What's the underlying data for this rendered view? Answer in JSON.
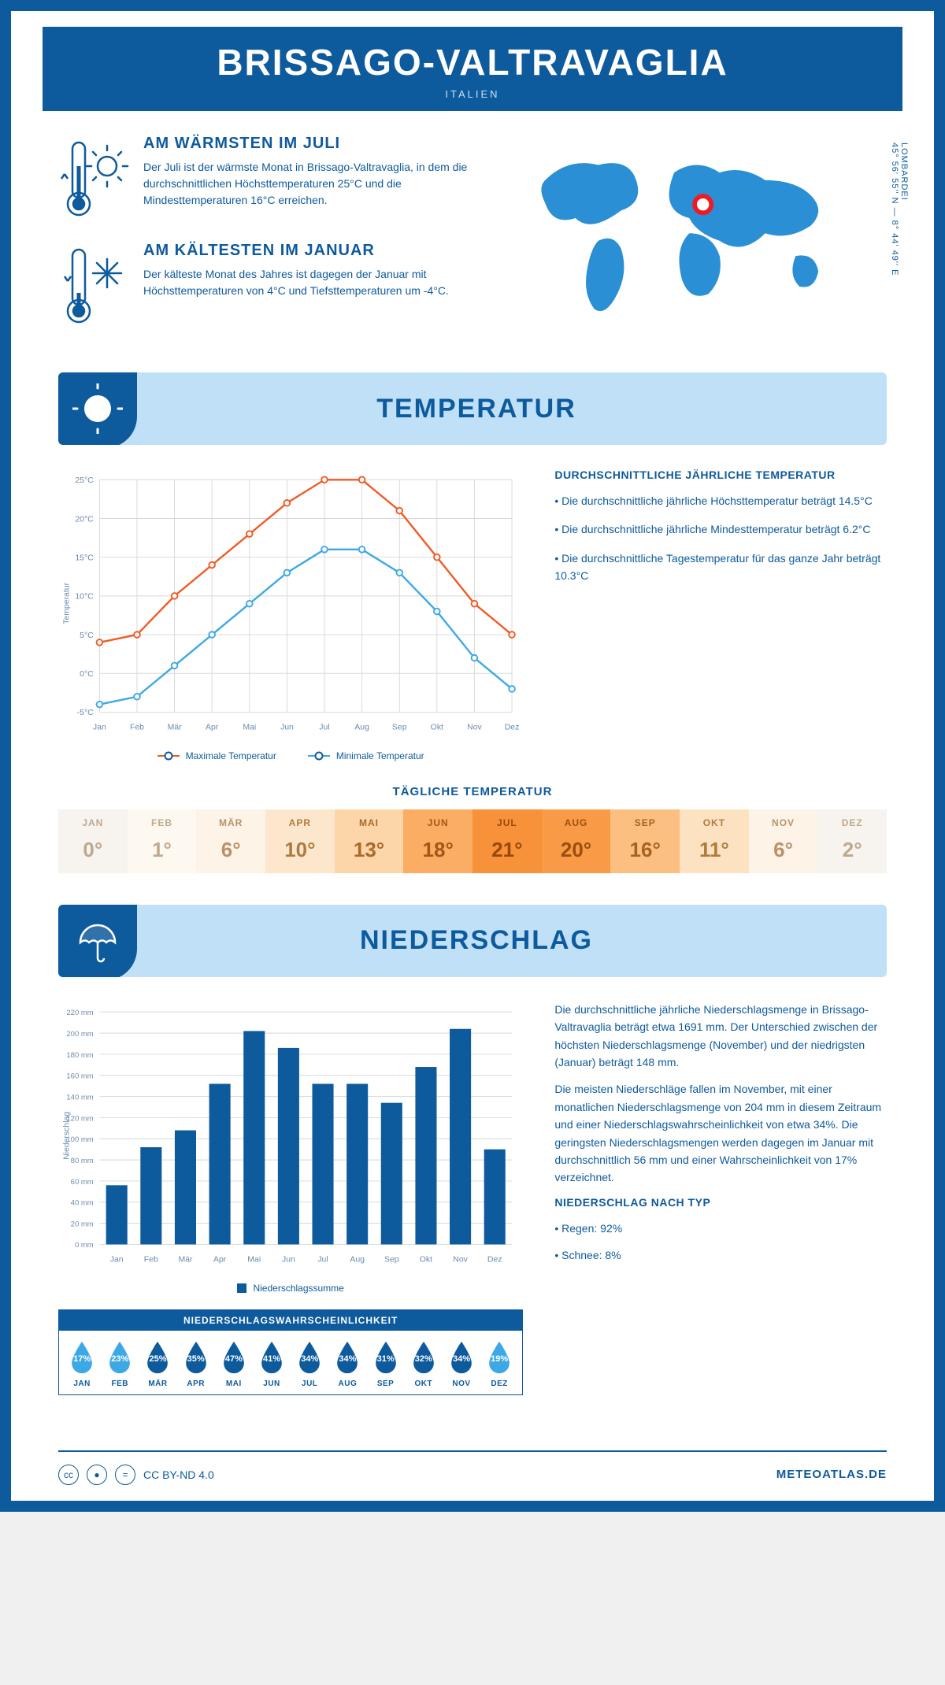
{
  "header": {
    "title": "BRISSAGO-VALTRAVAGLIA",
    "subtitle": "ITALIEN"
  },
  "coords": {
    "lat": "45° 56' 55'' N",
    "lon": "8° 44' 49'' E",
    "region": "LOMBARDEI"
  },
  "facts": {
    "warm": {
      "title": "AM WÄRMSTEN IM JULI",
      "text": "Der Juli ist der wärmste Monat in Brissago-Valtravaglia, in dem die durchschnittlichen Höchsttemperaturen 25°C und die Mindesttemperaturen 16°C erreichen."
    },
    "cold": {
      "title": "AM KÄLTESTEN IM JANUAR",
      "text": "Der kälteste Monat des Jahres ist dagegen der Januar mit Höchsttemperaturen von 4°C und Tiefsttemperaturen um -4°C."
    }
  },
  "colors": {
    "primary": "#0d5a9d",
    "banner": "#bfe0f7",
    "accent_hot": "#f15a24",
    "accent_cold": "#3da8e6",
    "map_marker": "#ed1c24",
    "grid": "#d8d8d8"
  },
  "temp_section": {
    "title": "TEMPERATUR",
    "chart": {
      "type": "line",
      "months": [
        "Jan",
        "Feb",
        "Mär",
        "Apr",
        "Mai",
        "Jun",
        "Jul",
        "Aug",
        "Sep",
        "Okt",
        "Nov",
        "Dez"
      ],
      "max": [
        4,
        5,
        10,
        14,
        18,
        22,
        25,
        25,
        21,
        15,
        9,
        5
      ],
      "min": [
        -4,
        -3,
        1,
        5,
        9,
        13,
        16,
        16,
        13,
        8,
        2,
        -2
      ],
      "ylabel": "Temperatur",
      "ylim": [
        -5,
        25
      ],
      "ytick_step": 5,
      "max_color": "#f15a24",
      "min_color": "#3da8e6",
      "legend_max": "Maximale Temperatur",
      "legend_min": "Minimale Temperatur"
    },
    "side_title": "DURCHSCHNITTLICHE JÄHRLICHE TEMPERATUR",
    "bullets": [
      "• Die durchschnittliche jährliche Höchsttemperatur beträgt 14.5°C",
      "• Die durchschnittliche jährliche Mindesttemperatur beträgt 6.2°C",
      "• Die durchschnittliche Tagestemperatur für das ganze Jahr beträgt 10.3°C"
    ],
    "daily_title": "TÄGLICHE TEMPERATUR",
    "daily": {
      "months": [
        "JAN",
        "FEB",
        "MÄR",
        "APR",
        "MAI",
        "JUN",
        "JUL",
        "AUG",
        "SEP",
        "OKT",
        "NOV",
        "DEZ"
      ],
      "values": [
        "0°",
        "1°",
        "6°",
        "10°",
        "13°",
        "18°",
        "21°",
        "20°",
        "16°",
        "11°",
        "6°",
        "2°"
      ],
      "bg_colors": [
        "#f7f3ee",
        "#fdf8f0",
        "#fdf3e6",
        "#fde7cc",
        "#fcd5a9",
        "#faad63",
        "#f7923b",
        "#f89a46",
        "#fbc081",
        "#fde2c1",
        "#fdf3e6",
        "#f7f3ee"
      ],
      "text_colors": [
        "#bda98e",
        "#bda98e",
        "#b8926a",
        "#b07a3f",
        "#a96a2a",
        "#a15718",
        "#98490a",
        "#9b4e0f",
        "#a66221",
        "#b07a3f",
        "#b8926a",
        "#bda98e"
      ]
    }
  },
  "precip_section": {
    "title": "NIEDERSCHLAG",
    "chart": {
      "type": "bar",
      "months": [
        "Jan",
        "Feb",
        "Mär",
        "Apr",
        "Mai",
        "Jun",
        "Jul",
        "Aug",
        "Sep",
        "Okt",
        "Nov",
        "Dez"
      ],
      "values": [
        56,
        92,
        108,
        152,
        202,
        186,
        152,
        152,
        134,
        168,
        204,
        90
      ],
      "ylabel": "Niederschlag",
      "ylim": [
        0,
        220
      ],
      "ytick_step": 20,
      "bar_color": "#0d5a9d",
      "legend": "Niederschlagssumme"
    },
    "side_p1": "Die durchschnittliche jährliche Niederschlagsmenge in Brissago-Valtravaglia beträgt etwa 1691 mm. Der Unterschied zwischen der höchsten Niederschlagsmenge (November) und der niedrigsten (Januar) beträgt 148 mm.",
    "side_p2": "Die meisten Niederschläge fallen im November, mit einer monatlichen Niederschlagsmenge von 204 mm in diesem Zeitraum und einer Niederschlagswahrscheinlichkeit von etwa 34%. Die geringsten Niederschlagsmengen werden dagegen im Januar mit durchschnittlich 56 mm und einer Wahrscheinlichkeit von 17% verzeichnet.",
    "type_title": "NIEDERSCHLAG NACH TYP",
    "type_b1": "• Regen: 92%",
    "type_b2": "• Schnee: 8%",
    "prob_title": "NIEDERSCHLAGSWAHRSCHEINLICHKEIT",
    "prob": {
      "months": [
        "JAN",
        "FEB",
        "MÄR",
        "APR",
        "MAI",
        "JUN",
        "JUL",
        "AUG",
        "SEP",
        "OKT",
        "NOV",
        "DEZ"
      ],
      "pct": [
        "17%",
        "23%",
        "25%",
        "35%",
        "47%",
        "41%",
        "34%",
        "34%",
        "31%",
        "32%",
        "34%",
        "19%"
      ],
      "fill": [
        "#3da8e6",
        "#3da8e6",
        "#0d5a9d",
        "#0d5a9d",
        "#0d5a9d",
        "#0d5a9d",
        "#0d5a9d",
        "#0d5a9d",
        "#0d5a9d",
        "#0d5a9d",
        "#0d5a9d",
        "#3da8e6"
      ]
    }
  },
  "footer": {
    "license": "CC BY-ND 4.0",
    "site": "METEOATLAS.DE"
  }
}
